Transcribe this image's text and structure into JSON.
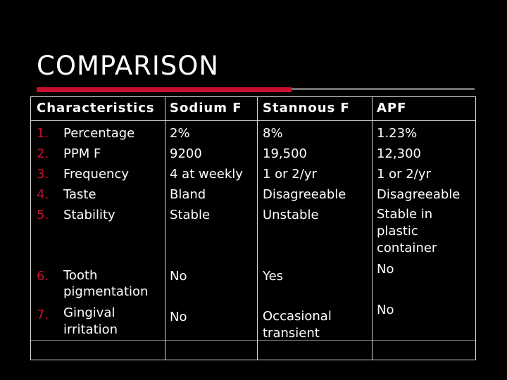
{
  "title": "COMPARISON",
  "colors": {
    "background": "#000000",
    "text": "#ffffff",
    "accent_red": "#c8102e",
    "rule_gray": "#6e6e6e"
  },
  "table": {
    "headers": [
      "Characteristics",
      "Sodium F",
      "Stannous F",
      "APF"
    ],
    "rows": [
      {
        "num": "1.",
        "label": "Percentage",
        "sodium": "2%",
        "stannous": "8%",
        "apf": "1.23%"
      },
      {
        "num": "2.",
        "label": "PPM F",
        "sodium": "9200",
        "stannous": "19,500",
        "apf": "12,300"
      },
      {
        "num": "3.",
        "label": "Frequency",
        "sodium": "4 at weekly",
        "stannous": "1 or 2/yr",
        "apf": "1 or 2/yr"
      },
      {
        "num": "4.",
        "label": "Taste",
        "sodium": "Bland",
        "stannous": "Disagreeable",
        "apf": "Disagreeable"
      },
      {
        "num": "5.",
        "label": "Stability",
        "sodium": "Stable",
        "stannous": "Unstable",
        "apf_lines": [
          "Stable in",
          "plastic",
          "container"
        ]
      }
    ],
    "rows_lower": [
      {
        "num": "6.",
        "label_lines": [
          "Tooth",
          "pigmentation"
        ],
        "sodium": "No",
        "stannous": "Yes",
        "apf": "No"
      },
      {
        "num": "7.",
        "label_lines": [
          "Gingival",
          "irritation"
        ],
        "sodium": "No",
        "stannous_lines": [
          "Occasional",
          "transient"
        ],
        "apf": "No"
      }
    ]
  }
}
